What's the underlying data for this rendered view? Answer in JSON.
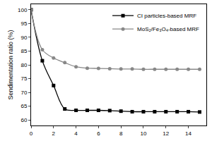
{
  "chart_data": {
    "type": "line",
    "y_label": "Sendimentation ratio (%)",
    "x": [
      0,
      1,
      2,
      3,
      4,
      5,
      6,
      7,
      8,
      9,
      10,
      11,
      12,
      13,
      14,
      15
    ],
    "series": [
      {
        "name": "CI particles-based MRF",
        "color": "#000000",
        "marker": "square",
        "line_style": "smooth",
        "values": [
          100,
          81.5,
          72.5,
          64,
          63.5,
          63.5,
          63.5,
          63.4,
          63.2,
          63,
          63,
          63,
          63,
          63,
          63,
          62.9
        ]
      },
      {
        "name": "MoS₂/Fe₃O₄-based MRF",
        "color": "#888888",
        "marker": "circle",
        "line_style": "smooth",
        "values": [
          100,
          85.5,
          82.5,
          80.8,
          79.3,
          78.8,
          78.7,
          78.6,
          78.5,
          78.5,
          78.4,
          78.4,
          78.4,
          78.4,
          78.4,
          78.4
        ]
      }
    ],
    "xlim": [
      0,
      15.6
    ],
    "xticks": [
      0,
      2,
      4,
      6,
      8,
      10,
      12,
      14
    ],
    "ylim": [
      58,
      102
    ],
    "yticks": [
      60,
      65,
      70,
      75,
      80,
      85,
      90,
      95,
      100
    ],
    "grid": false,
    "legend": "top right"
  }
}
